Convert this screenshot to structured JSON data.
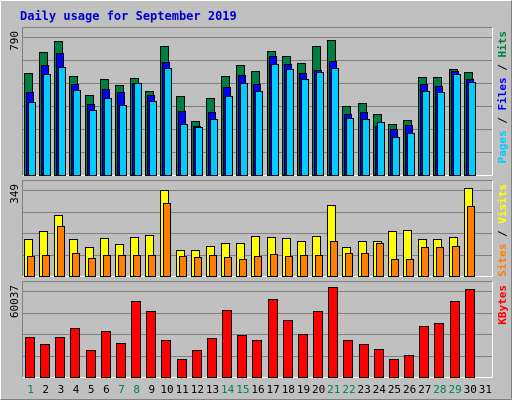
{
  "chart_data": {
    "type": "bar",
    "title": "Daily usage for September 2019",
    "categories": [
      "1",
      "2",
      "3",
      "4",
      "5",
      "6",
      "7",
      "8",
      "9",
      "10",
      "11",
      "12",
      "13",
      "14",
      "15",
      "16",
      "17",
      "18",
      "19",
      "20",
      "21",
      "22",
      "23",
      "24",
      "25",
      "26",
      "27",
      "28",
      "29",
      "30",
      "31"
    ],
    "weekend_days": [
      "1",
      "7",
      "8",
      "14",
      "15",
      "21",
      "22",
      "28",
      "29"
    ],
    "panels": [
      {
        "id": "hits",
        "max_label": "790",
        "ymax": 790,
        "legend": [
          {
            "label": "Pages",
            "color": "#00ccff"
          },
          {
            "label": "Files",
            "color": "#0000ff"
          },
          {
            "label": "Hits",
            "color": "#008040"
          }
        ],
        "separator": "/",
        "series": [
          {
            "name": "Hits",
            "color": "#008040",
            "values": [
              566,
              683,
              748,
              548,
              443,
              532,
              498,
              541,
              470,
              716,
              437,
              302,
              430,
              550,
              610,
              577,
              691,
              660,
              621,
              720,
              751,
              382,
              398,
              338,
              284,
              305,
              547,
              543,
              588,
              572,
              0
            ]
          },
          {
            "name": "Files",
            "color": "#0000ff",
            "values": [
              460,
              612,
              678,
              509,
              396,
              478,
              464,
              511,
              445,
              629,
              354,
              275,
              351,
              490,
              557,
              508,
              662,
              617,
              570,
              586,
              637,
              338,
              350,
              273,
              258,
              280,
              509,
              495,
              580,
              535,
              0
            ]
          },
          {
            "name": "Pages",
            "color": "#00ccff",
            "values": [
              404,
              561,
              603,
              475,
              361,
              426,
              390,
              511,
              412,
              594,
              281,
              265,
              312,
              442,
              513,
              469,
              618,
              591,
              534,
              572,
              594,
              319,
              313,
              297,
              209,
              236,
              465,
              459,
              560,
              516,
              0
            ]
          }
        ]
      },
      {
        "id": "visits",
        "max_label": "349",
        "ymax": 349,
        "legend": [
          {
            "label": "Sites",
            "color": "#ff8000"
          },
          {
            "label": "Visits",
            "color": "#ffff00"
          }
        ],
        "separator": "/",
        "series": [
          {
            "name": "Visits",
            "color": "#ffff00",
            "values": [
              145,
              176,
              235,
              143,
              112,
              149,
              124,
              153,
              158,
              332,
              101,
              100,
              116,
              127,
              129,
              154,
              153,
              149,
              134,
              154,
              274,
              111,
              134,
              137,
              175,
              177,
              143,
              145,
              153,
              341,
              0
            ]
          },
          {
            "name": "Sites",
            "color": "#ff8000",
            "values": [
              78,
              80,
              193,
              89,
              71,
              81,
              80,
              81,
              81,
              285,
              79,
              75,
              80,
              75,
              67,
              76,
              86,
              79,
              81,
              81,
              134,
              91,
              91,
              128,
              66,
              66,
              113,
              113,
              118,
              271,
              0
            ]
          }
        ]
      },
      {
        "id": "kbytes",
        "max_label": "60037",
        "ymax": 60037,
        "legend": [
          {
            "label": "KBytes",
            "color": "#ff0000"
          }
        ],
        "separator": "/",
        "series": [
          {
            "name": "KBytes",
            "color": "#ff0000",
            "values": [
              26945,
              21955,
              26945,
              32933,
              17962,
              30938,
              22954,
              50896,
              43909,
              24950,
              11976,
              17962,
              25948,
              44908,
              27943,
              24950,
              51895,
              37922,
              28941,
              43909,
              59938,
              24950,
              21955,
              18961,
              11976,
              14970,
              33931,
              35928,
              50896,
              58941,
              0
            ]
          }
        ]
      }
    ]
  }
}
